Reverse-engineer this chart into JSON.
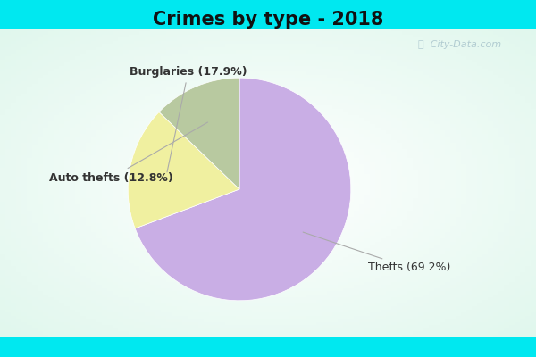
{
  "title": "Crimes by type - 2018",
  "slices": [
    {
      "label": "Thefts (69.2%)",
      "pct": 69.2,
      "color": "#c9aee5"
    },
    {
      "label": "Burglaries (17.9%)",
      "pct": 17.9,
      "color": "#f0f0a0"
    },
    {
      "label": "Auto thefts (12.8%)",
      "pct": 12.8,
      "color": "#b8c9a0"
    }
  ],
  "title_fontsize": 15,
  "label_fontsize": 9,
  "bg_color_cyan": "#00e8f0",
  "bg_color_body": "#e8f5ee",
  "watermark": "City-Data.com",
  "startangle": 90,
  "label_color": "#333333",
  "arrow_color": "#aaaaaa"
}
